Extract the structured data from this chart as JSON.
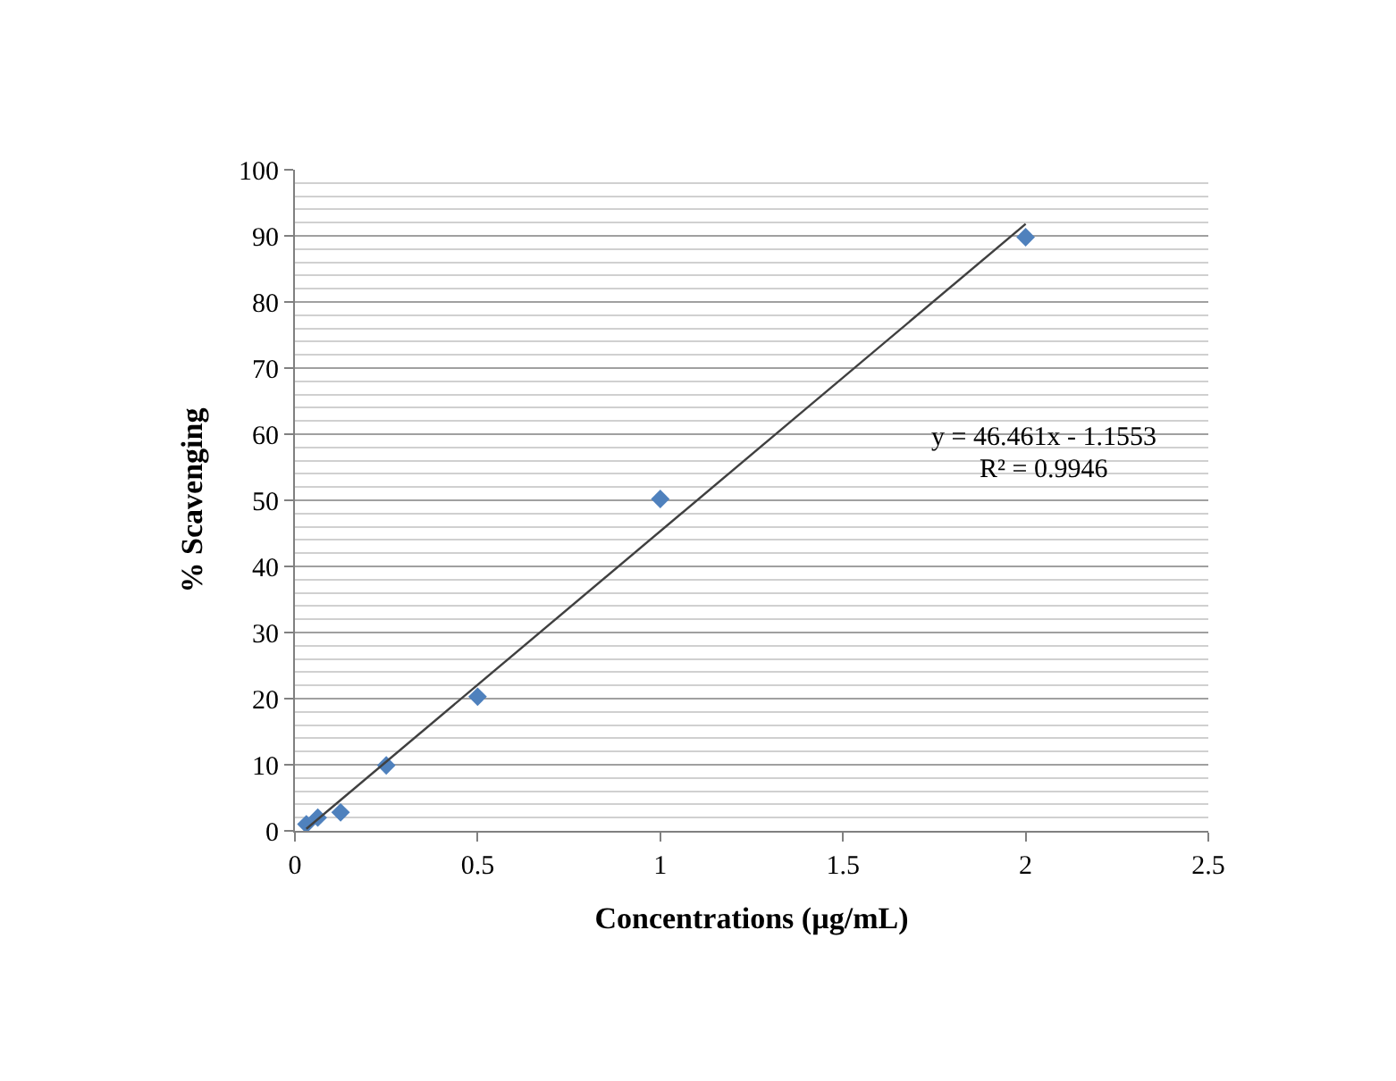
{
  "chart_data": {
    "type": "scatter",
    "xlabel": "Concentrations (µg/mL)",
    "ylabel": "% Scavenging",
    "x": [
      0.03125,
      0.0625,
      0.125,
      0.25,
      0.5,
      1,
      2
    ],
    "series": [
      {
        "color": "#4f81bd",
        "marker": "diamond",
        "values": [
          1,
          2,
          2.8,
          9.9,
          20.3,
          50.2,
          89.8
        ]
      },
      {
        "type": "line",
        "color": "#404040",
        "marker": "none",
        "x": [
          0.03125,
          2
        ],
        "values": [
          0.3,
          91.8
        ]
      }
    ],
    "xlim": [
      0,
      2.5
    ],
    "xticks": [
      0,
      0.5,
      1,
      1.5,
      2,
      2.5
    ],
    "ylim": [
      0,
      100
    ],
    "yticks": [
      0,
      10,
      20,
      30,
      40,
      50,
      60,
      70,
      80,
      90,
      100
    ],
    "grid": "y",
    "annotations": [
      "y = 46.461x - 1.1553",
      "R² = 0.9946"
    ]
  }
}
